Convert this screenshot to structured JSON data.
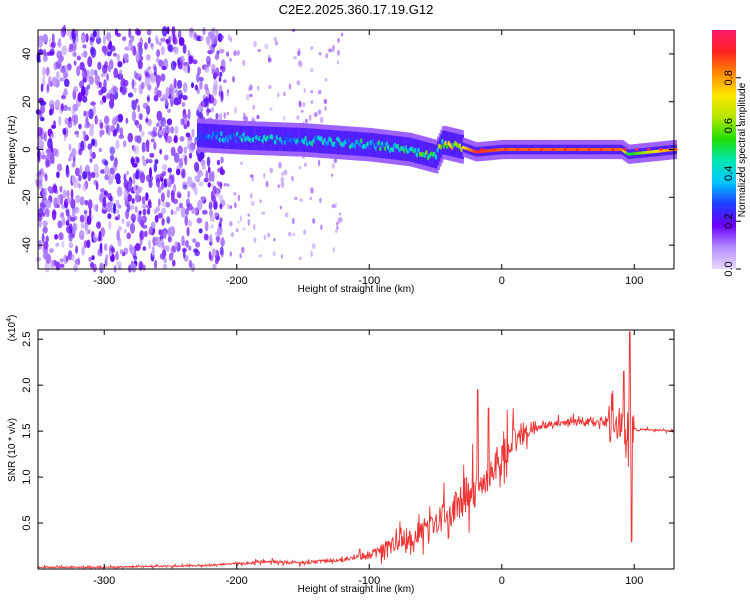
{
  "figure": {
    "title": "C2E2.2025.360.17.19.G12"
  },
  "chart_data": [
    {
      "type": "heatmap",
      "title": "C2E2.2025.360.17.19.G12",
      "xlabel": "Height of straight line (km)",
      "ylabel": "Frequency (Hz)",
      "xlim": [
        -350,
        130
      ],
      "ylim": [
        -50,
        50
      ],
      "xticks": [
        -300,
        -200,
        -100,
        0,
        100
      ],
      "yticks": [
        -40,
        -20,
        0,
        20,
        40
      ],
      "colorbar": {
        "label": "Normalized spectral amplitude",
        "range": [
          0,
          1
        ],
        "ticks": [
          "0.0",
          "0.2",
          "0.4",
          "0.6",
          "0.8"
        ],
        "colormap": [
          "#e8d8ff",
          "#b58cff",
          "#6a00ff",
          "#1f3dff",
          "#00c8ff",
          "#00e6b0",
          "#23e000",
          "#b6e600",
          "#ffe600",
          "#ff8a00",
          "#ff2020",
          "#ff1a6e"
        ]
      },
      "features": {
        "noise_region_km": [
          -350,
          -210
        ],
        "scattered_noise_km": [
          -210,
          -120
        ],
        "carrier_trace": [
          {
            "x": -230,
            "freq": 6,
            "amp": 0.3
          },
          {
            "x": -200,
            "freq": 5,
            "amp": 0.35
          },
          {
            "x": -150,
            "freq": 4,
            "amp": 0.38
          },
          {
            "x": -100,
            "freq": 2,
            "amp": 0.4
          },
          {
            "x": -70,
            "freq": 0,
            "amp": 0.45
          },
          {
            "x": -50,
            "freq": -3,
            "amp": 0.5
          },
          {
            "x": -45,
            "freq": 3,
            "amp": 0.55
          },
          {
            "x": -30,
            "freq": 1,
            "amp": 0.7
          },
          {
            "x": -20,
            "freq": -1,
            "amp": 0.9
          },
          {
            "x": 0,
            "freq": 0,
            "amp": 0.85
          },
          {
            "x": 50,
            "freq": 0,
            "amp": 0.85
          },
          {
            "x": 90,
            "freq": 0,
            "amp": 0.85
          },
          {
            "x": 95,
            "freq": -2,
            "amp": 0.5
          },
          {
            "x": 130,
            "freq": 0,
            "amp": 0.85
          }
        ]
      }
    },
    {
      "type": "line",
      "xlabel": "Height of straight line (km)",
      "ylabel": "SNR (10 * v/v)",
      "multiplier": "(x10",
      "multiplier_exp": "4",
      "multiplier_close": ")",
      "xlim": [
        -350,
        130
      ],
      "ylim": [
        0,
        2.6
      ],
      "xticks": [
        -300,
        -200,
        -100,
        0,
        100
      ],
      "yticks": [
        "0.5",
        "1.0",
        "1.5",
        "2.0",
        "2.5"
      ],
      "color": "#ee3333",
      "series": [
        {
          "name": "SNR",
          "x": [
            -350,
            -300,
            -250,
            -220,
            -200,
            -180,
            -150,
            -120,
            -100,
            -90,
            -80,
            -70,
            -60,
            -50,
            -45,
            -40,
            -35,
            -30,
            -25,
            -20,
            -18,
            -15,
            -10,
            -5,
            0,
            5,
            10,
            20,
            30,
            40,
            50,
            60,
            70,
            80,
            85,
            90,
            95,
            98,
            100,
            102,
            105,
            110,
            120,
            130
          ],
          "values": [
            0.02,
            0.02,
            0.03,
            0.04,
            0.06,
            0.08,
            0.07,
            0.1,
            0.15,
            0.22,
            0.28,
            0.35,
            0.42,
            0.5,
            0.55,
            0.6,
            0.68,
            0.75,
            0.8,
            0.85,
            1.9,
            0.9,
            1.0,
            1.15,
            1.25,
            1.35,
            1.4,
            1.5,
            1.55,
            1.58,
            1.6,
            1.6,
            1.6,
            1.58,
            1.55,
            1.5,
            2.55,
            0.3,
            1.55,
            1.5,
            1.52,
            1.52,
            1.51,
            1.5
          ]
        }
      ],
      "annotations": [
        {
          "x": -18,
          "y": 1.95,
          "note": "spike"
        },
        {
          "x": 97,
          "y": 2.58,
          "note": "spike"
        },
        {
          "x": 98,
          "y": 0.3,
          "note": "dip"
        }
      ]
    }
  ]
}
